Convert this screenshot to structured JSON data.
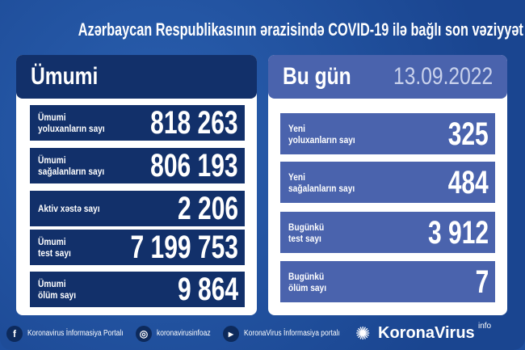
{
  "title": "Azərbaycan Respublikasının ərazisində COVID-19 ilə bağlı son vəziyyət",
  "total": {
    "heading": "Ümumi",
    "rows": [
      {
        "label": "Ümumi\nyoluxanların sayı",
        "value": "818 263"
      },
      {
        "label": "Ümumi\nsağalanların sayı",
        "value": "806 193"
      },
      {
        "label": "Aktiv xəstə sayı",
        "value": "2 206"
      },
      {
        "label": "Ümumi\ntest sayı",
        "value": "7 199 753"
      },
      {
        "label": "Ümumi\nölüm sayı",
        "value": "9 864"
      }
    ]
  },
  "today": {
    "heading": "Bu gün",
    "date": "13.09.2022",
    "rows": [
      {
        "label": "Yeni\nyoluxanların sayı",
        "value": "325"
      },
      {
        "label": "Yeni\nsağalanların sayı",
        "value": "484"
      },
      {
        "label": "Bugünkü\ntest sayı",
        "value": "3 912"
      },
      {
        "label": "Bugünkü\nölüm sayı",
        "value": "7"
      }
    ]
  },
  "footer": {
    "facebook": "Koronavirus İnformasiya Portalı",
    "instagram": "koronavirusinfoaz",
    "youtube": "KoronaVirus İnformasiya portalı",
    "brand": "KoronaVirus",
    "brand_sup": "info"
  },
  "colors": {
    "background": "#1f4f9e",
    "navy": "#12306a",
    "periwinkle": "#4a63ad"
  }
}
